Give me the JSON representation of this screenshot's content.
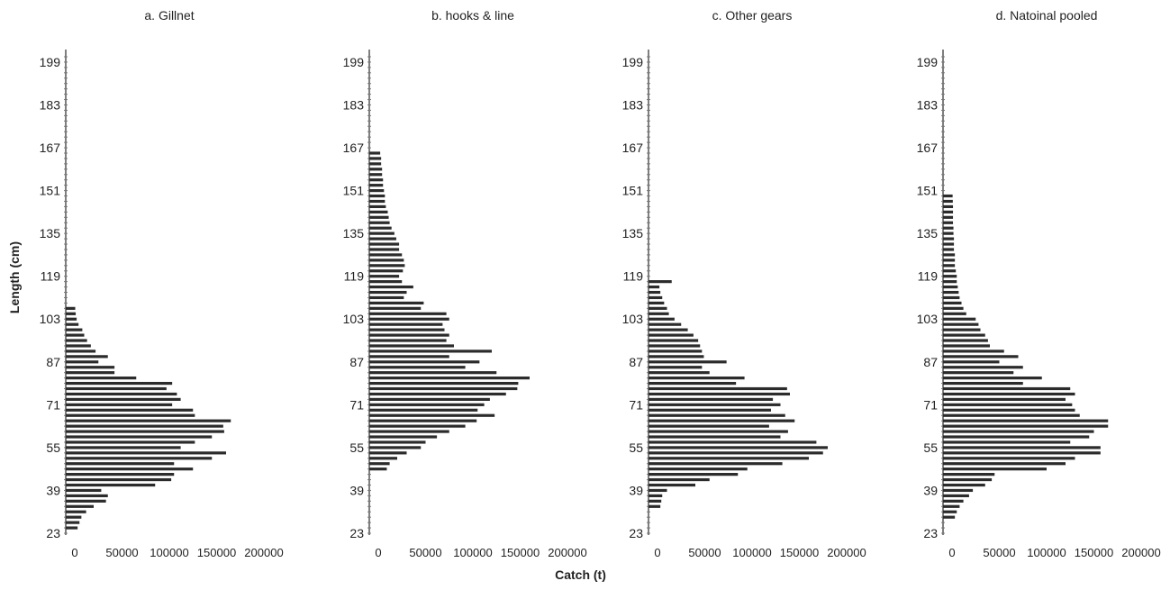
{
  "figure": {
    "ylabel": "Length (cm)",
    "xlabel": "Catch (t)"
  },
  "chart_data": [
    {
      "type": "bar",
      "orientation": "horizontal",
      "title": "a. Gillnet",
      "ylim": [
        23,
        201
      ],
      "xlim": [
        0,
        200000
      ],
      "yticks": [
        23,
        39,
        55,
        71,
        87,
        103,
        119,
        135,
        151,
        167,
        183,
        199
      ],
      "xticks": [
        0,
        50000,
        100000,
        150000,
        200000
      ],
      "lengths": [
        25,
        27,
        29,
        31,
        33,
        35,
        37,
        39,
        41,
        43,
        45,
        47,
        49,
        51,
        53,
        55,
        57,
        59,
        61,
        63,
        65,
        67,
        69,
        71,
        73,
        75,
        77,
        79,
        81,
        83,
        85,
        87,
        89,
        91,
        93,
        95,
        97,
        99,
        101,
        103,
        105,
        107
      ],
      "values": [
        3000,
        5000,
        7000,
        12000,
        20000,
        33000,
        35000,
        28000,
        85000,
        102000,
        105000,
        125000,
        105000,
        145000,
        160000,
        112000,
        127000,
        145000,
        158000,
        157000,
        165000,
        127000,
        125000,
        103000,
        112000,
        108000,
        97000,
        103000,
        65000,
        42000,
        42000,
        25000,
        35000,
        22000,
        17000,
        13000,
        10000,
        8000,
        4000,
        2000,
        1000,
        500
      ],
      "grid": false
    },
    {
      "type": "bar",
      "orientation": "horizontal",
      "title": "b. hooks & line",
      "ylim": [
        23,
        201
      ],
      "xlim": [
        0,
        200000
      ],
      "yticks": [
        23,
        39,
        55,
        71,
        87,
        103,
        119,
        135,
        151,
        167,
        183,
        199
      ],
      "xticks": [
        0,
        50000,
        100000,
        150000,
        200000
      ],
      "lengths": [
        47,
        49,
        51,
        53,
        55,
        57,
        59,
        61,
        63,
        65,
        67,
        69,
        71,
        73,
        75,
        77,
        79,
        81,
        83,
        85,
        87,
        89,
        91,
        93,
        95,
        97,
        99,
        101,
        103,
        105,
        107,
        109,
        111,
        113,
        115,
        117,
        119,
        121,
        123,
        125,
        127,
        129,
        131,
        133,
        135,
        137,
        139,
        141,
        143,
        145,
        147,
        149,
        151,
        153,
        155,
        157,
        159,
        161,
        163,
        165
      ],
      "values": [
        9000,
        12000,
        20000,
        30000,
        45000,
        50000,
        62000,
        75000,
        92000,
        104000,
        123000,
        105000,
        112000,
        118000,
        135000,
        147000,
        148000,
        160000,
        125000,
        92000,
        107000,
        75000,
        120000,
        80000,
        72000,
        75000,
        70000,
        68000,
        75000,
        72000,
        45000,
        48000,
        27000,
        30000,
        37000,
        25000,
        22000,
        26000,
        28000,
        27000,
        25000,
        22000,
        22000,
        19000,
        17000,
        14000,
        12000,
        11000,
        10000,
        8000,
        7000,
        7000,
        6000,
        5000,
        5000,
        4000,
        4000,
        3000,
        3000,
        2000
      ],
      "grid": false
    },
    {
      "type": "bar",
      "orientation": "horizontal",
      "title": "c. Other gears",
      "ylim": [
        23,
        201
      ],
      "xlim": [
        0,
        200000
      ],
      "yticks": [
        23,
        39,
        55,
        71,
        87,
        103,
        119,
        135,
        151,
        167,
        183,
        199
      ],
      "xticks": [
        0,
        50000,
        100000,
        150000,
        200000
      ],
      "lengths": [
        33,
        35,
        37,
        39,
        41,
        43,
        45,
        47,
        49,
        51,
        53,
        55,
        57,
        59,
        61,
        63,
        65,
        67,
        69,
        71,
        73,
        75,
        77,
        79,
        81,
        83,
        85,
        87,
        89,
        91,
        93,
        95,
        97,
        99,
        101,
        103,
        105,
        107,
        109,
        111,
        113,
        115,
        117
      ],
      "values": [
        3000,
        4000,
        5000,
        10000,
        40000,
        55000,
        85000,
        95000,
        132000,
        160000,
        175000,
        180000,
        168000,
        130000,
        138000,
        118000,
        145000,
        135000,
        120000,
        130000,
        122000,
        140000,
        137000,
        83000,
        92000,
        55000,
        47000,
        73000,
        49000,
        47000,
        45000,
        43000,
        38000,
        32000,
        25000,
        18000,
        12000,
        10000,
        7000,
        5000,
        3000,
        2000,
        15000
      ],
      "grid": false
    },
    {
      "type": "bar",
      "orientation": "horizontal",
      "title": "d. Natoinal pooled",
      "ylim": [
        23,
        201
      ],
      "xlim": [
        0,
        200000
      ],
      "yticks": [
        23,
        39,
        55,
        71,
        87,
        103,
        119,
        135,
        151,
        167,
        183,
        199
      ],
      "xticks": [
        0,
        50000,
        100000,
        150000,
        200000
      ],
      "lengths": [
        29,
        31,
        33,
        35,
        37,
        39,
        41,
        43,
        45,
        47,
        49,
        51,
        53,
        55,
        57,
        59,
        61,
        63,
        65,
        67,
        69,
        71,
        73,
        75,
        77,
        79,
        81,
        83,
        85,
        87,
        89,
        91,
        93,
        95,
        97,
        99,
        101,
        103,
        105,
        107,
        109,
        111,
        113,
        115,
        117,
        119,
        121,
        123,
        125,
        127,
        129,
        131,
        133,
        135,
        137,
        139,
        141,
        143,
        145,
        147,
        149
      ],
      "values": [
        3000,
        5000,
        8000,
        12000,
        18000,
        22000,
        35000,
        42000,
        45000,
        100000,
        120000,
        130000,
        157000,
        157000,
        125000,
        145000,
        150000,
        165000,
        165000,
        135000,
        130000,
        127000,
        120000,
        130000,
        125000,
        75000,
        95000,
        65000,
        75000,
        50000,
        70000,
        55000,
        40000,
        38000,
        35000,
        30000,
        28000,
        25000,
        15000,
        12000,
        10000,
        8000,
        7000,
        6000,
        5000,
        5000,
        4000,
        3000,
        3000,
        3000,
        2000,
        2000,
        2000,
        1500,
        1500,
        1000,
        1000,
        1000,
        1000,
        800,
        600
      ],
      "grid": false
    }
  ]
}
